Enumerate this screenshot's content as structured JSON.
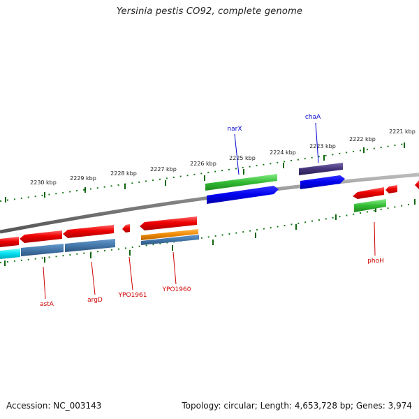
{
  "title": "Yersinia pestis CO92, complete genome",
  "footer": {
    "accession": "Accession: NC_003143",
    "summary": "Topology: circular; Length: 4,653,728 bp; Genes: 3,974"
  },
  "scale": {
    "ticks": [
      {
        "label": "2230 kbp",
        "kbp": 2230
      },
      {
        "label": "2229 kbp",
        "kbp": 2229
      },
      {
        "label": "2228 kbp",
        "kbp": 2228
      },
      {
        "label": "2227 kbp",
        "kbp": 2227
      },
      {
        "label": "2226 kbp",
        "kbp": 2226
      },
      {
        "label": "2225 kbp",
        "kbp": 2225
      },
      {
        "label": "2224 kbp",
        "kbp": 2224
      },
      {
        "label": "2223 kbp",
        "kbp": 2223
      },
      {
        "label": "2222 kbp",
        "kbp": 2222
      },
      {
        "label": "2221 kbp",
        "kbp": 2221
      }
    ]
  },
  "gene_labels": {
    "outer": [
      {
        "name": "narX",
        "color": "#0000cc"
      },
      {
        "name": "chaA",
        "color": "#0000cc"
      }
    ],
    "inner": [
      {
        "name": "astA",
        "color": "#cc0000"
      },
      {
        "name": "argD",
        "color": "#cc0000"
      },
      {
        "name": "YPO1961",
        "color": "#cc0000"
      },
      {
        "name": "YPO1960",
        "color": "#cc0000"
      },
      {
        "name": "phoH",
        "color": "#cc0000"
      }
    ]
  },
  "colors": {
    "cds_red": "#ee0000",
    "gene_green": "#33bb33",
    "blast_blue": "#0000ee",
    "purple": "#443377",
    "steel": "#4477aa",
    "cyan": "#00ddee",
    "orange": "#ee8800",
    "backbone": "#808080",
    "tick_green": "#116611"
  }
}
